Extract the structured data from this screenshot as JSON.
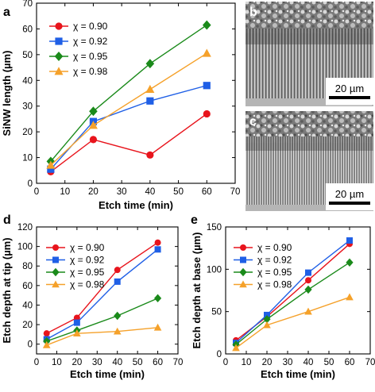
{
  "colors": {
    "c090": "#e8141c",
    "c092": "#1f5fe6",
    "c095": "#1a8a1a",
    "c098": "#f5a12a"
  },
  "legend_labels": [
    "χ = 0.90",
    "χ = 0.92",
    "χ = 0.95",
    "χ = 0.98"
  ],
  "markers": [
    "circle",
    "square",
    "diamond",
    "triangle"
  ],
  "panels": {
    "a": {
      "letter": "a"
    },
    "b": {
      "letter": "b",
      "scale_bar": "20 µm"
    },
    "c": {
      "letter": "c",
      "scale_bar": "20 µm"
    },
    "d": {
      "letter": "d"
    },
    "e": {
      "letter": "e"
    }
  },
  "chart_data": [
    {
      "panel": "a",
      "type": "line",
      "xlabel": "Etch time (min)",
      "ylabel": "SiNW length (µm)",
      "xlim": [
        0,
        70
      ],
      "ylim": [
        0,
        70
      ],
      "xticks": [
        0,
        10,
        20,
        30,
        40,
        50,
        60,
        70
      ],
      "yticks": [
        0,
        10,
        20,
        30,
        40,
        50,
        60,
        70
      ],
      "legend_position": "top-left",
      "x": [
        5,
        20,
        40,
        60
      ],
      "series": [
        {
          "name": "χ = 0.90",
          "values": [
            4.5,
            17,
            11,
            27
          ]
        },
        {
          "name": "χ = 0.92",
          "values": [
            5.5,
            24,
            32,
            38
          ]
        },
        {
          "name": "χ = 0.95",
          "values": [
            8.5,
            28,
            46.5,
            61.5
          ]
        },
        {
          "name": "χ = 0.98",
          "values": [
            7,
            22.5,
            36.5,
            50.5
          ]
        }
      ]
    },
    {
      "panel": "d",
      "type": "line",
      "xlabel": "Etch time (min)",
      "ylabel": "Etch depth at tip (µm)",
      "xlim": [
        0,
        70
      ],
      "ylim": [
        -10,
        120
      ],
      "xticks": [
        0,
        10,
        20,
        30,
        40,
        50,
        60,
        70
      ],
      "yticks": [
        0,
        20,
        40,
        60,
        80,
        100,
        120
      ],
      "legend_position": "top-left",
      "x": [
        5,
        20,
        40,
        60
      ],
      "series": [
        {
          "name": "χ = 0.90",
          "values": [
            11,
            27,
            76,
            104
          ]
        },
        {
          "name": "χ = 0.92",
          "values": [
            5,
            22,
            64,
            97
          ]
        },
        {
          "name": "χ = 0.95",
          "values": [
            3,
            14,
            29,
            47
          ]
        },
        {
          "name": "χ = 0.98",
          "values": [
            -1,
            11,
            13,
            17
          ]
        }
      ]
    },
    {
      "panel": "e",
      "type": "line",
      "xlabel": "Etch time (min)",
      "ylabel": "Etch depth at base (µm)",
      "xlim": [
        0,
        70
      ],
      "ylim": [
        0,
        150
      ],
      "xticks": [
        0,
        10,
        20,
        30,
        40,
        50,
        60,
        70
      ],
      "yticks": [
        0,
        50,
        100,
        150
      ],
      "legend_position": "top-left",
      "x": [
        5,
        20,
        40,
        60
      ],
      "series": [
        {
          "name": "χ = 0.90",
          "values": [
            16,
            44,
            87,
            130
          ]
        },
        {
          "name": "χ = 0.92",
          "values": [
            13,
            46,
            96,
            134
          ]
        },
        {
          "name": "χ = 0.95",
          "values": [
            11,
            41,
            76,
            108
          ]
        },
        {
          "name": "χ = 0.98",
          "values": [
            7,
            34,
            50,
            67
          ]
        }
      ]
    }
  ]
}
